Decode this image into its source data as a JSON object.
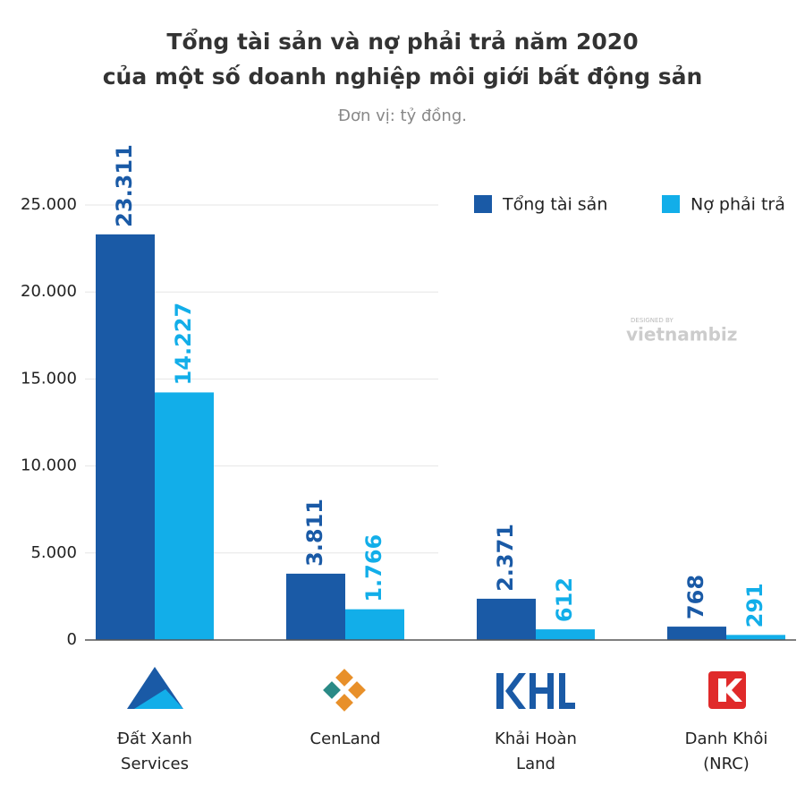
{
  "chart_data": {
    "type": "bar",
    "title": [
      "Tổng tài sản và nợ phải trả năm 2020",
      "của một số doanh nghiệp môi giới bất động sản"
    ],
    "subtitle": "Đơn vị: tỷ đồng.",
    "watermark": {
      "top": "DESIGNED BY",
      "brand": "vietnambiz"
    },
    "categories": [
      "Đất Xanh Services",
      "CenLand",
      "Khải Hoàn Land",
      "Danh Khôi (NRC)"
    ],
    "series": [
      {
        "name": "Tổng tài sản",
        "color": "#1a5aa6",
        "values": [
          23311,
          3811,
          2371,
          768
        ],
        "value_labels": [
          "23.311",
          "3.811",
          "2.371",
          "768"
        ]
      },
      {
        "name": "Nợ phải trả",
        "color": "#12aee9",
        "values": [
          14227,
          1766,
          612,
          291
        ],
        "value_labels": [
          "14.227",
          "1.766",
          "612",
          "291"
        ]
      }
    ],
    "ylim": [
      0,
      25000
    ],
    "yticks": [
      0,
      {
        "value": 5000,
        "label": "5.000"
      },
      {
        "value": 10000,
        "label": "10.000"
      },
      {
        "value": 15000,
        "label": "15.000"
      },
      {
        "value": 20000,
        "label": "20.000"
      },
      {
        "value": 25000,
        "label": "25.000"
      }
    ],
    "grid": true,
    "legend": "top-right"
  }
}
